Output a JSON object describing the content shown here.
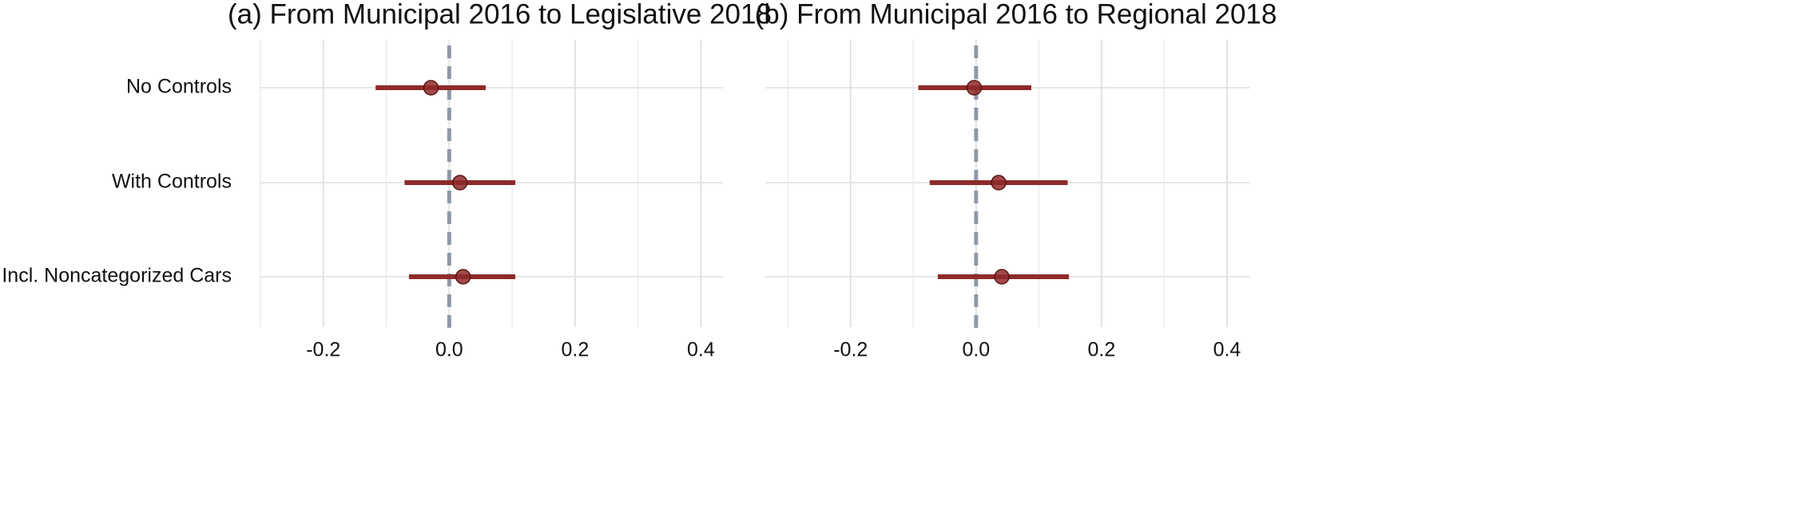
{
  "chart_data": [
    {
      "type": "dotwhisker",
      "title": "(a) From Municipal 2016 to Legislative 2018",
      "categories": [
        "No Controls",
        "With Controls",
        "Incl. Noncategorized Cars"
      ],
      "values": [
        -0.029,
        0.017,
        0.022
      ],
      "lower": [
        -0.117,
        -0.071,
        -0.064
      ],
      "upper": [
        0.058,
        0.105,
        0.105
      ],
      "color": "#8f2a2a",
      "ref_line": 0,
      "ref_color": "#8e99a8",
      "xlim": [
        -0.3,
        0.435
      ],
      "xticks": [
        -0.2,
        {
          "value": 0,
          "label": "0.0"
        },
        0.2,
        0.4
      ],
      "minor_xticks": [
        -0.3,
        -0.1,
        0.1,
        0.3
      ],
      "grid": true
    },
    {
      "type": "dotwhisker",
      "title": "(b) From Municipal 2016 to Regional 2018",
      "values": [
        -0.003,
        0.036,
        0.041
      ],
      "lower": [
        -0.092,
        -0.074,
        -0.061
      ],
      "upper": [
        0.088,
        0.146,
        0.148
      ],
      "color": "#8f2a2a",
      "ref_line": 0,
      "ref_color": "#8e99a8",
      "xlim": [
        -0.336,
        0.437
      ],
      "xticks": [
        -0.2,
        {
          "value": 0,
          "label": "0.0"
        },
        0.2,
        0.4
      ],
      "minor_xticks": [
        -0.3,
        -0.1,
        0.1,
        0.3
      ],
      "grid": true
    }
  ]
}
